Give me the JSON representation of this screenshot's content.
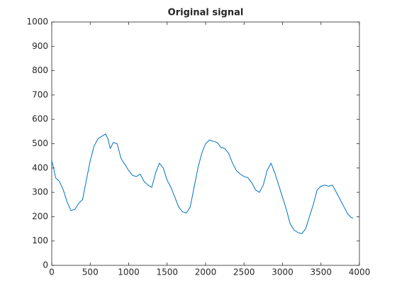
{
  "chart_data": {
    "type": "line",
    "title": "Original signal",
    "color": "#0072bd",
    "x": [
      0,
      25,
      50,
      100,
      150,
      200,
      250,
      300,
      350,
      400,
      450,
      500,
      550,
      600,
      650,
      700,
      730,
      760,
      800,
      850,
      900,
      950,
      1000,
      1050,
      1100,
      1150,
      1200,
      1250,
      1300,
      1350,
      1400,
      1450,
      1500,
      1550,
      1600,
      1650,
      1700,
      1750,
      1800,
      1850,
      1900,
      1950,
      2000,
      2050,
      2100,
      2150,
      2200,
      2250,
      2300,
      2350,
      2400,
      2450,
      2500,
      2550,
      2600,
      2650,
      2700,
      2750,
      2800,
      2850,
      2900,
      2950,
      3000,
      3050,
      3100,
      3150,
      3200,
      3250,
      3300,
      3350,
      3400,
      3450,
      3500,
      3550,
      3600,
      3650,
      3700,
      3750,
      3800,
      3850,
      3900,
      3920
    ],
    "values": [
      430,
      400,
      360,
      345,
      310,
      260,
      225,
      230,
      255,
      270,
      350,
      430,
      490,
      520,
      530,
      540,
      520,
      480,
      505,
      500,
      440,
      415,
      390,
      370,
      365,
      375,
      345,
      330,
      320,
      380,
      420,
      400,
      350,
      320,
      280,
      240,
      220,
      215,
      240,
      320,
      400,
      460,
      500,
      515,
      510,
      505,
      485,
      480,
      460,
      420,
      390,
      375,
      365,
      360,
      340,
      310,
      300,
      330,
      390,
      420,
      380,
      330,
      280,
      230,
      170,
      145,
      135,
      130,
      150,
      200,
      250,
      310,
      325,
      330,
      325,
      330,
      300,
      270,
      240,
      210,
      195,
      195
    ],
    "xlim": [
      0,
      4000
    ],
    "xticks": [
      0,
      500,
      1000,
      1500,
      2000,
      2500,
      3000,
      3500,
      4000
    ],
    "ylim": [
      0,
      1000
    ],
    "yticks": [
      0,
      100,
      200,
      300,
      400,
      500,
      600,
      700,
      800,
      900,
      1000
    ]
  }
}
